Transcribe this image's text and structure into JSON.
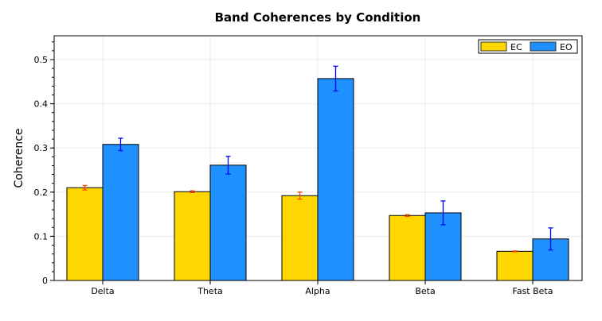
{
  "chart_data": {
    "type": "bar",
    "title": "Band Coherences by Condition",
    "xlabel": "",
    "ylabel": "Coherence",
    "categories": [
      "Delta",
      "Theta",
      "Alpha",
      "Beta",
      "Fast Beta"
    ],
    "series": [
      {
        "name": "EC",
        "color": "#FFD700",
        "error_color": "#FF4500",
        "values": [
          0.21,
          0.201,
          0.192,
          0.147,
          0.066
        ],
        "errors": [
          0.005,
          0.002,
          0.008,
          0.002,
          0.001
        ]
      },
      {
        "name": "EO",
        "color": "#1E90FF",
        "error_color": "#0000FF",
        "values": [
          0.308,
          0.261,
          0.457,
          0.153,
          0.094
        ],
        "errors": [
          0.014,
          0.02,
          0.028,
          0.027,
          0.025
        ]
      }
    ],
    "ylim": [
      0,
      0.55
    ],
    "yticks": [
      "0",
      "0.1",
      "0.2",
      "0.3",
      "0.4",
      "0.5"
    ],
    "grid": true,
    "legend": "top-right"
  }
}
